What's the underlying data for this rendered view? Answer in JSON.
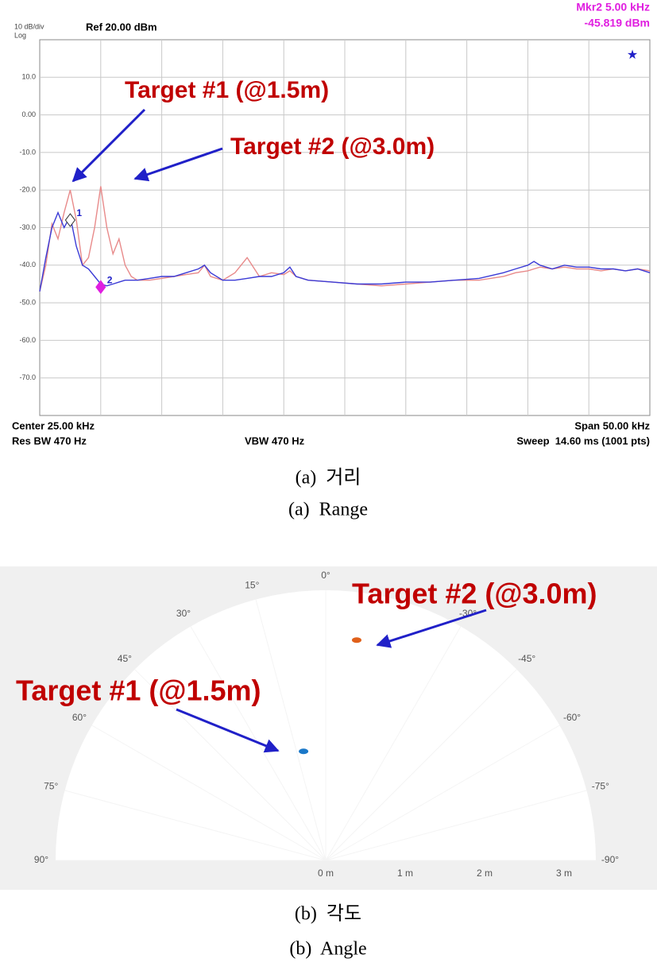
{
  "chart_data": [
    {
      "type": "line",
      "scale_label": "10 dB/div",
      "scale_mode": "Log",
      "ref_label": "Ref 20.00 dBm",
      "marker_readout": [
        "Mkr2 5.00 kHz",
        "-45.819 dBm"
      ],
      "footer": {
        "center": "Center 25.00 kHz",
        "res_bw": "Res BW 470 Hz",
        "vbw": "VBW 470 Hz",
        "span": "Span 50.00 kHz",
        "sweep": "Sweep  14.60 ms (1001 pts)"
      },
      "annotations": [
        "Target #1 (@1.5m)",
        "Target #2 (@3.0m)"
      ],
      "xlim": [
        0,
        50
      ],
      "ylim": [
        -80,
        20
      ],
      "yticks": [
        {
          "value": 10,
          "label": "10.0"
        },
        {
          "value": 0,
          "label": "0.00"
        },
        {
          "value": -10,
          "label": "-10.0"
        },
        {
          "value": -20,
          "label": "-20.0"
        },
        {
          "value": -30,
          "label": "-30.0"
        },
        {
          "value": -40,
          "label": "-40.0"
        },
        {
          "value": -50,
          "label": "-50.0"
        },
        {
          "value": -60,
          "label": "-60.0"
        },
        {
          "value": -70,
          "label": "-70.0"
        }
      ],
      "grid": true,
      "x": [
        0,
        0.5,
        1,
        1.5,
        2,
        2.5,
        3,
        3.5,
        4,
        4.5,
        5,
        5.5,
        6,
        6.5,
        7,
        7.5,
        8,
        9,
        10,
        11,
        12,
        13,
        13.5,
        14,
        15,
        16,
        17,
        18,
        19,
        20,
        20.5,
        21,
        22,
        24,
        26,
        28,
        30,
        32,
        34,
        36,
        38,
        39,
        40,
        40.5,
        41,
        42,
        43,
        44,
        45,
        46,
        47,
        48,
        49,
        50
      ],
      "series": [
        {
          "color": "#3b3bd6",
          "values": [
            -47,
            -38,
            -30,
            -26,
            -30,
            -27,
            -35,
            -40,
            -41,
            -43,
            -45,
            -45.5,
            -45,
            -44.5,
            -44,
            -44,
            -44,
            -43.5,
            -43,
            -43,
            -42,
            -41,
            -40,
            -42,
            -44,
            -44,
            -43.5,
            -43,
            -43,
            -42,
            -40.5,
            -43,
            -44,
            -44.5,
            -45,
            -45,
            -44.5,
            -44.5,
            -44,
            -43.5,
            -42,
            -41,
            -40,
            -39,
            -40,
            -41,
            -40,
            -40.5,
            -40.5,
            -41,
            -41,
            -41.5,
            -41,
            -42
          ]
        },
        {
          "color": "#e88a8a",
          "values": [
            -47,
            -40,
            -29,
            -33,
            -26,
            -20,
            -28,
            -40,
            -38,
            -30,
            -19,
            -30,
            -37,
            -33,
            -40,
            -43,
            -44,
            -44,
            -43.5,
            -43,
            -42.5,
            -42,
            -40,
            -43,
            -44,
            -42,
            -38,
            -43,
            -42,
            -42.5,
            -41.5,
            -43,
            -44,
            -44.5,
            -45,
            -45.5,
            -45,
            -44.5,
            -44,
            -44,
            -43,
            -42,
            -41.5,
            -41,
            -40.5,
            -41,
            -40.5,
            -41,
            -41,
            -41.5,
            -41,
            -41.5,
            -41,
            -41.5
          ]
        }
      ],
      "markers": [
        {
          "label": "1",
          "x": 2.5,
          "y": -28
        },
        {
          "label": "2",
          "x": 5,
          "y": -45.819
        }
      ],
      "caption": [
        "(a)  거리",
        "(a)  Range"
      ]
    },
    {
      "type": "polar",
      "annotations": [
        "Target #2 (@3.0m)",
        "Target #1 (@1.5m)"
      ],
      "rlim": [
        0,
        3.4
      ],
      "rticks": [
        {
          "value": 0,
          "label": "0 m"
        },
        {
          "value": 1,
          "label": "1 m"
        },
        {
          "value": 2,
          "label": "2 m"
        },
        {
          "value": 3,
          "label": "3 m"
        }
      ],
      "thetaticks": [
        {
          "value": 0,
          "label": "0°"
        },
        {
          "value": 15,
          "label": "15°"
        },
        {
          "value": 30,
          "label": "30°"
        },
        {
          "value": 45,
          "label": "45°"
        },
        {
          "value": 60,
          "label": "60°"
        },
        {
          "value": 75,
          "label": "75°"
        },
        {
          "value": 90,
          "label": "90°"
        },
        {
          "value": -30,
          "label": "-30°"
        },
        {
          "value": -45,
          "label": "-45°"
        },
        {
          "value": -60,
          "label": "-60°"
        },
        {
          "value": -75,
          "label": "-75°"
        },
        {
          "value": -90,
          "label": "-90°"
        }
      ],
      "points": [
        {
          "r": 2.8,
          "theta": -8,
          "color": "#e0601a"
        },
        {
          "r": 1.4,
          "theta": 11.5,
          "color": "#1a78c8"
        }
      ],
      "caption": [
        "(b)  각도",
        "(b)  Angle"
      ]
    }
  ]
}
